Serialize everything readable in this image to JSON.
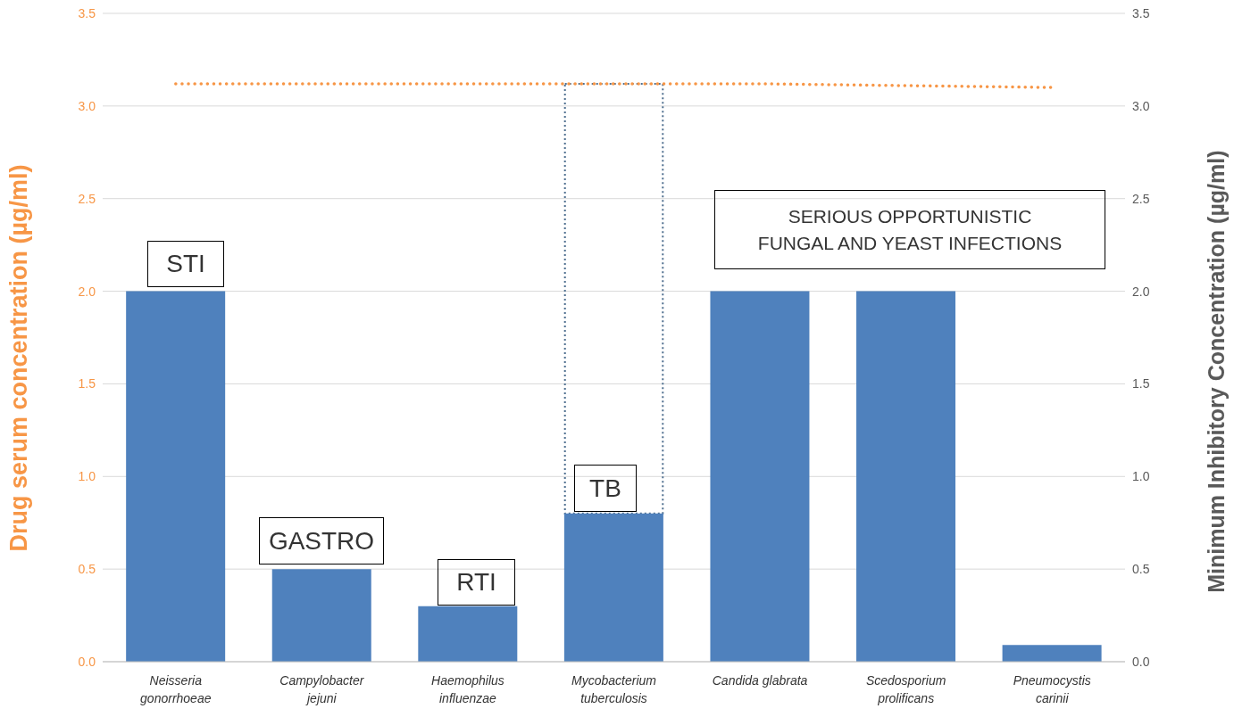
{
  "chart_data": {
    "type": "bar",
    "ylabel": "Drug serum concentration (µg/ml)",
    "y2label": "Minimum Inhibitory Concentration (µg/ml)",
    "categories": [
      "Neisseria\ngonorrhoeae",
      "Campylobacter\njejuni",
      "Haemophilus\ninfluenzae",
      "Mycobacterium\ntuberculosis",
      "Candida  glabrata",
      "Scedosporium\nprolificans",
      "Pneumocystis\ncarinii"
    ],
    "series": [
      {
        "color": "#4f81bd",
        "values": [
          2.0,
          0.5,
          0.3,
          0.8,
          2.0,
          2.0,
          0.09
        ]
      },
      {
        "type": "line",
        "color": "#f79646",
        "line_style": "dotted",
        "marker": "none",
        "values": [
          3.12,
          3.12,
          3.12,
          3.12,
          3.12,
          3.11,
          3.1
        ]
      }
    ],
    "ylim": [
      0,
      3.5
    ],
    "yticks": [
      {
        "value": 0,
        "label": "0.0"
      },
      0.5,
      {
        "value": 1,
        "label": "1.0"
      },
      1.5,
      {
        "value": 2,
        "label": "2.0"
      },
      2.5,
      {
        "value": 3,
        "label": "3.0"
      },
      3.5
    ],
    "y2lim": [
      0,
      3.5
    ],
    "y2ticks": [
      {
        "value": 0,
        "label": "0.0"
      },
      0.5,
      {
        "value": 1,
        "label": "1.0"
      },
      1.5,
      {
        "value": 2,
        "label": "2.0"
      },
      2.5,
      {
        "value": 3,
        "label": "3.0"
      },
      3.5
    ],
    "grid": "y",
    "legend": false,
    "annotations": [
      "STI",
      "GASTRO",
      "RTI",
      "TB",
      "SERIOUS OPPORTUNISTIC FUNGAL AND YEAST INFECTIONS"
    ]
  }
}
